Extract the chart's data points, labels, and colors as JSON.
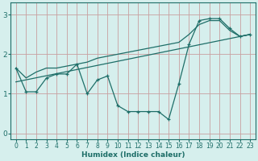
{
  "xlabel": "Humidex (Indice chaleur)",
  "background_color": "#d6efed",
  "line_color": "#1e6e68",
  "grid_color": "#c8a0a0",
  "x_values": [
    0,
    1,
    2,
    3,
    4,
    5,
    6,
    7,
    8,
    9,
    10,
    11,
    12,
    13,
    14,
    15,
    16,
    17,
    18,
    19,
    20,
    21,
    22,
    23
  ],
  "main_line": [
    1.65,
    1.05,
    1.05,
    1.4,
    1.5,
    1.5,
    1.75,
    1.0,
    1.35,
    1.45,
    0.7,
    0.55,
    0.55,
    0.55,
    0.55,
    0.35,
    1.25,
    2.25,
    2.85,
    2.9,
    2.9,
    2.65,
    2.45,
    2.5
  ],
  "trend_line_x": [
    0,
    23
  ],
  "trend_line_y": [
    1.3,
    2.5
  ],
  "upper_line_x": [
    0,
    1,
    2,
    3,
    4,
    5,
    6,
    7,
    8,
    9,
    10,
    11,
    12,
    13,
    14,
    15,
    16,
    17,
    18,
    19,
    20,
    21,
    22,
    23
  ],
  "upper_line_y": [
    1.65,
    1.4,
    1.55,
    1.65,
    1.65,
    1.7,
    1.75,
    1.8,
    1.9,
    1.95,
    2.0,
    2.05,
    2.1,
    2.15,
    2.2,
    2.25,
    2.3,
    2.5,
    2.75,
    2.85,
    2.85,
    2.6,
    2.45,
    2.5
  ],
  "ylim": [
    -0.15,
    3.3
  ],
  "xlim": [
    -0.5,
    23.5
  ],
  "yticks": [
    0,
    1,
    2,
    3
  ],
  "xticks": [
    0,
    1,
    2,
    3,
    4,
    5,
    6,
    7,
    8,
    9,
    10,
    11,
    12,
    13,
    14,
    15,
    16,
    17,
    18,
    19,
    20,
    21,
    22,
    23
  ],
  "tick_fontsize": 5.5,
  "xlabel_fontsize": 6.5
}
